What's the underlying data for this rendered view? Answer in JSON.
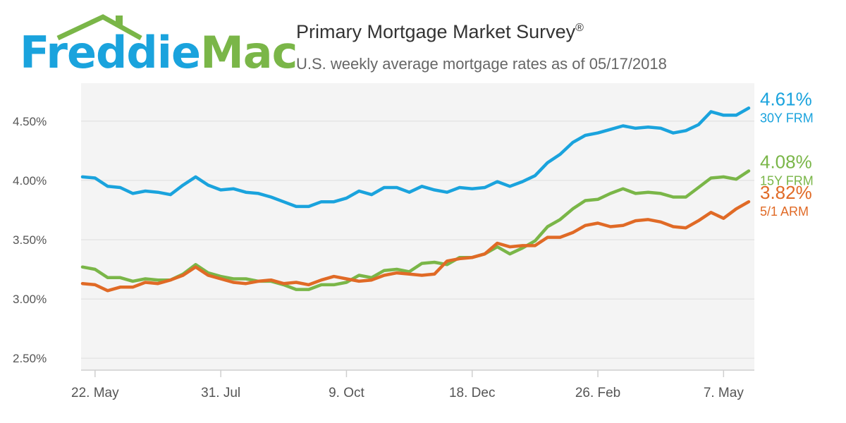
{
  "brand": {
    "logo_word1": "Freddie",
    "logo_word2": "Mac",
    "color_blue": "#1aa3dd",
    "color_green": "#7ab648"
  },
  "header": {
    "title": "Primary Mortgage Market Survey",
    "title_mark": "®",
    "subtitle": "U.S. weekly average mortgage rates as of 05/17/2018"
  },
  "chart_data": {
    "type": "line",
    "ylim": [
      2.4,
      4.82
    ],
    "y_ticks": [
      {
        "value": 2.5,
        "label": "2.50%"
      },
      {
        "value": 3.0,
        "label": "3.00%"
      },
      {
        "value": 3.5,
        "label": "3.50%"
      },
      {
        "value": 4.0,
        "label": "4.00%"
      },
      {
        "value": 4.5,
        "label": "4.50%"
      }
    ],
    "x_ticks": [
      {
        "index": 1,
        "label": "22. May"
      },
      {
        "index": 11,
        "label": "31. Jul"
      },
      {
        "index": 21,
        "label": "9. Oct"
      },
      {
        "index": 31,
        "label": "18. Dec"
      },
      {
        "index": 41,
        "label": "26. Feb"
      },
      {
        "index": 51,
        "label": "7. May"
      }
    ],
    "grid": true,
    "legend": "right-end labels",
    "series": [
      {
        "name": "30Y FRM",
        "color": "#1aa3dd",
        "end_label": "4.61%",
        "values": [
          4.03,
          4.02,
          3.95,
          3.94,
          3.89,
          3.91,
          3.9,
          3.88,
          3.96,
          4.03,
          3.96,
          3.92,
          3.93,
          3.9,
          3.89,
          3.86,
          3.82,
          3.78,
          3.78,
          3.82,
          3.82,
          3.85,
          3.91,
          3.88,
          3.94,
          3.94,
          3.9,
          3.95,
          3.92,
          3.9,
          3.94,
          3.93,
          3.94,
          3.99,
          3.95,
          3.99,
          4.04,
          4.15,
          4.22,
          4.32,
          4.38,
          4.4,
          4.43,
          4.46,
          4.44,
          4.45,
          4.44,
          4.4,
          4.42,
          4.47,
          4.58,
          4.55,
          4.55,
          4.61
        ]
      },
      {
        "name": "15Y FRM",
        "color": "#7ab648",
        "end_label": "4.08%",
        "values": [
          3.27,
          3.25,
          3.18,
          3.18,
          3.15,
          3.17,
          3.16,
          3.16,
          3.21,
          3.29,
          3.22,
          3.19,
          3.17,
          3.17,
          3.15,
          3.15,
          3.12,
          3.08,
          3.08,
          3.12,
          3.12,
          3.14,
          3.2,
          3.18,
          3.24,
          3.25,
          3.23,
          3.3,
          3.31,
          3.29,
          3.35,
          3.35,
          3.38,
          3.44,
          3.38,
          3.43,
          3.49,
          3.61,
          3.67,
          3.76,
          3.83,
          3.84,
          3.89,
          3.93,
          3.89,
          3.9,
          3.89,
          3.86,
          3.86,
          3.94,
          4.02,
          4.03,
          4.01,
          4.08
        ]
      },
      {
        "name": "5/1 ARM",
        "color": "#e06a26",
        "end_label": "3.82%",
        "values": [
          3.13,
          3.12,
          3.07,
          3.1,
          3.1,
          3.14,
          3.13,
          3.16,
          3.2,
          3.27,
          3.2,
          3.17,
          3.14,
          3.13,
          3.15,
          3.16,
          3.13,
          3.14,
          3.12,
          3.16,
          3.19,
          3.17,
          3.15,
          3.16,
          3.2,
          3.22,
          3.21,
          3.2,
          3.21,
          3.32,
          3.34,
          3.35,
          3.38,
          3.47,
          3.44,
          3.45,
          3.45,
          3.52,
          3.52,
          3.56,
          3.62,
          3.64,
          3.61,
          3.62,
          3.66,
          3.67,
          3.65,
          3.61,
          3.6,
          3.66,
          3.73,
          3.68,
          3.76,
          3.82
        ]
      }
    ]
  }
}
